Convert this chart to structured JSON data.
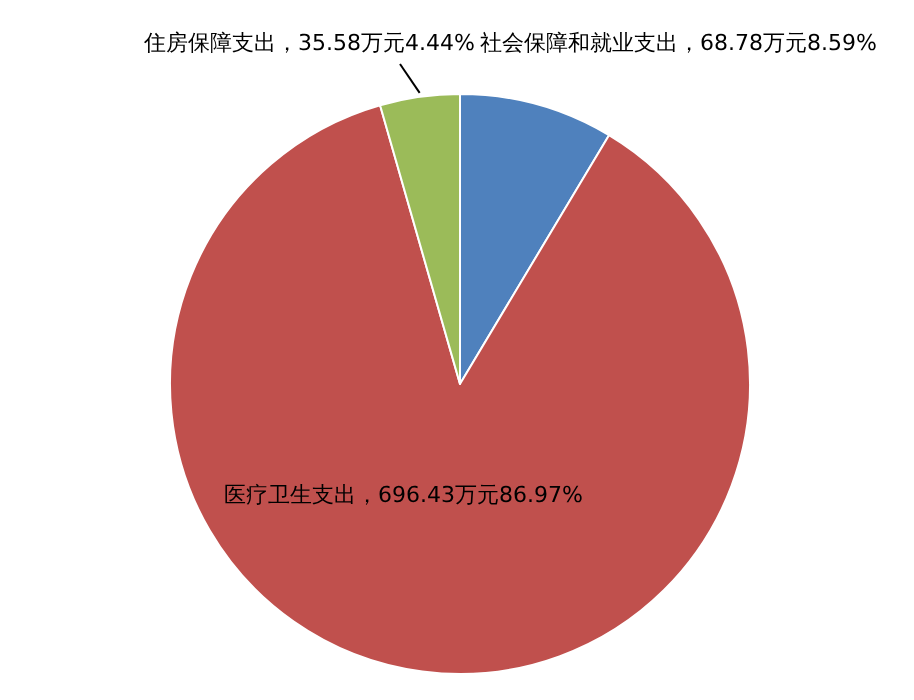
{
  "chart_data": {
    "type": "pie",
    "categories": [
      "社会保障和就业支出",
      "医疗卫生支出",
      "住房保障支出"
    ],
    "values": [
      68.78,
      696.43,
      35.58
    ],
    "colors": [
      "#4f81bd",
      "#c0504d",
      "#9bbb59"
    ],
    "value_labels": [
      "68.78万元8.59%",
      "696.43万元86.97%",
      "35.58万元4.44%"
    ]
  }
}
